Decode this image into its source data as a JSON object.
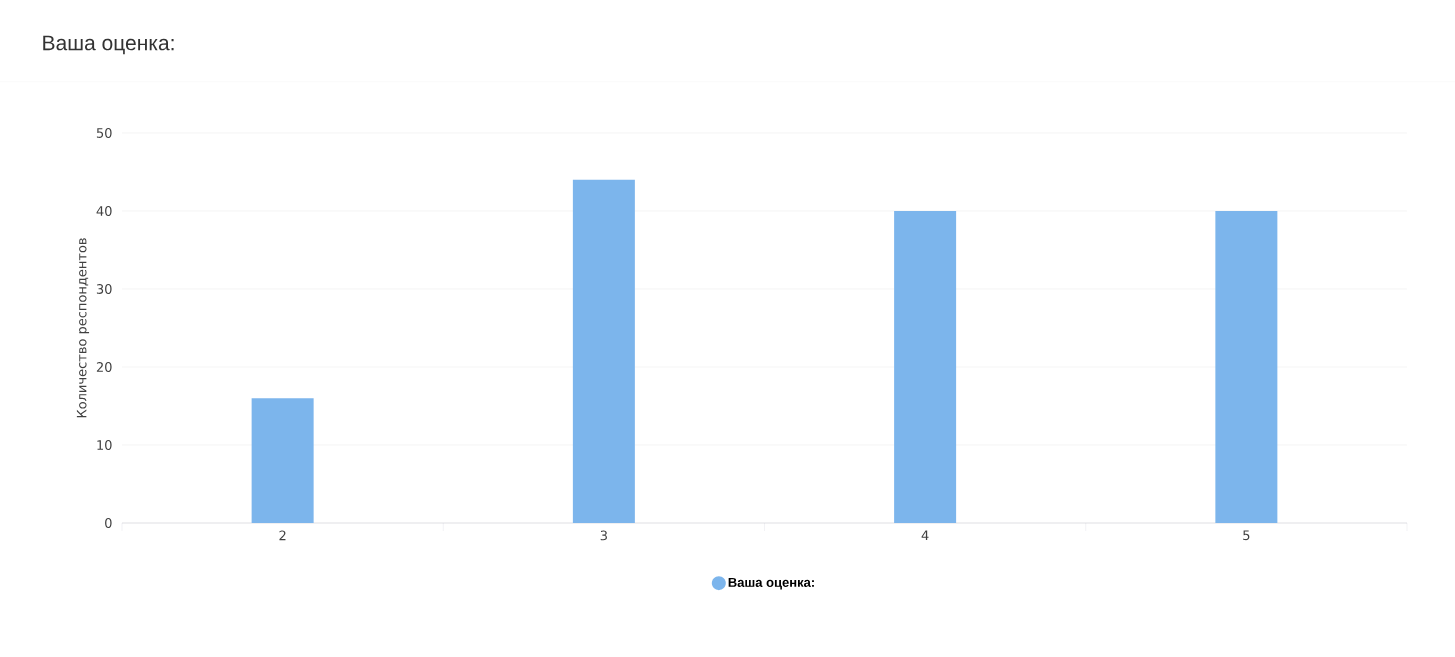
{
  "chart_data": {
    "type": "bar",
    "title": "Ваша оценка:",
    "ylabel": "Количество респондентов",
    "categories": [
      "2",
      "3",
      "4",
      "5"
    ],
    "series": [
      {
        "name": "Ваша оценка:",
        "color": "#7cb5ec",
        "values": [
          16,
          44,
          40,
          40
        ]
      }
    ],
    "ylim": [
      0,
      50
    ],
    "yticks": [
      0,
      10,
      20,
      30,
      40,
      50
    ],
    "grid": "y",
    "legend": "bottom"
  }
}
